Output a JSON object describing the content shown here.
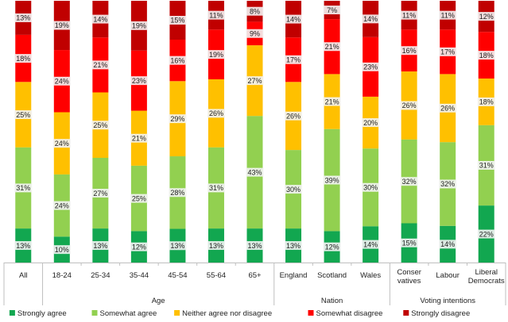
{
  "chart_data": {
    "type": "bar",
    "stacked": true,
    "title": "",
    "xlabel": "",
    "ylabel": "",
    "ylim": [
      0,
      100
    ],
    "bars": [
      {
        "label": [
          "All"
        ],
        "group": "",
        "values": [
          13,
          31,
          25,
          18,
          13
        ]
      },
      {
        "label": [
          "18-24"
        ],
        "group": "Age",
        "values": [
          10,
          24,
          24,
          24,
          19
        ]
      },
      {
        "label": [
          "25-34"
        ],
        "group": "Age",
        "values": [
          13,
          27,
          25,
          21,
          14
        ]
      },
      {
        "label": [
          "35-44"
        ],
        "group": "Age",
        "values": [
          12,
          25,
          21,
          23,
          19
        ]
      },
      {
        "label": [
          "45-54"
        ],
        "group": "Age",
        "values": [
          13,
          28,
          29,
          16,
          15
        ]
      },
      {
        "label": [
          "55-64"
        ],
        "group": "Age",
        "values": [
          13,
          31,
          26,
          19,
          11
        ]
      },
      {
        "label": [
          "65+"
        ],
        "group": "Age",
        "values": [
          13,
          43,
          27,
          9,
          8
        ]
      },
      {
        "label": [
          "England"
        ],
        "group": "Nation",
        "values": [
          13,
          30,
          26,
          17,
          14
        ]
      },
      {
        "label": [
          "Scotland"
        ],
        "group": "Nation",
        "values": [
          12,
          39,
          21,
          21,
          7
        ]
      },
      {
        "label": [
          "Wales"
        ],
        "group": "Nation",
        "values": [
          14,
          30,
          20,
          23,
          14
        ]
      },
      {
        "label": [
          "Conser",
          "vatives"
        ],
        "group": "Voting intentions",
        "values": [
          15,
          32,
          26,
          16,
          11
        ]
      },
      {
        "label": [
          "Labour"
        ],
        "group": "Voting intentions",
        "values": [
          14,
          32,
          26,
          17,
          11
        ]
      },
      {
        "label": [
          "Liberal",
          "Democrats"
        ],
        "group": "Voting intentions",
        "values": [
          22,
          31,
          18,
          18,
          12
        ]
      }
    ],
    "series": [
      {
        "name": "Strongly agree",
        "color": "#12a750"
      },
      {
        "name": "Somewhat agree",
        "color": "#92d050"
      },
      {
        "name": "Neither agree nor disagree",
        "color": "#ffc000"
      },
      {
        "name": "Somewhat disagree",
        "color": "#ff0000"
      },
      {
        "name": "Strongly disagree",
        "color": "#c00000"
      }
    ],
    "groups": [
      "Age",
      "Nation",
      "Voting intentions"
    ],
    "legend_position": "bottom"
  }
}
